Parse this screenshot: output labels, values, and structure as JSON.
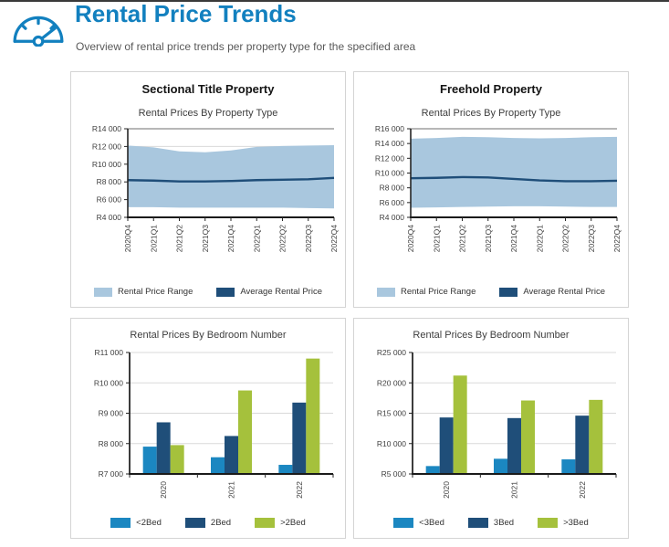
{
  "page": {
    "title": "Rental Price Trends",
    "subtitle": "Overview of rental price trends per property type for the specified area"
  },
  "colors": {
    "accent_blue": "#1280bf",
    "band_light_blue": "#a9c7de",
    "dark_blue": "#1f4e79",
    "cyan": "#1b87c1",
    "green": "#a5c13c",
    "grid": "#d9d9d9",
    "axis": "#262626",
    "tick_text": "#404040"
  },
  "icons": {
    "header_icon": "gauge-icon"
  },
  "chart_data": [
    {
      "panel_heading": "Sectional Title Property",
      "title": "Rental Prices By Property Type",
      "type": "area",
      "x": [
        "2020Q4",
        "2021Q1",
        "2021Q2",
        "2021Q3",
        "2021Q4",
        "2022Q1",
        "2022Q2",
        "2022Q3",
        "2022Q4"
      ],
      "series": [
        {
          "name": "Rental Price Range",
          "role": "band",
          "color": "#a9c7de",
          "upper": [
            12100,
            11900,
            11450,
            11350,
            11550,
            11950,
            12050,
            12100,
            12150
          ],
          "lower": [
            5150,
            5150,
            5100,
            5100,
            5100,
            5100,
            5100,
            5050,
            5000
          ]
        },
        {
          "name": "Average Rental Price",
          "role": "line",
          "color": "#1f4e79",
          "values": [
            8200,
            8150,
            8050,
            8050,
            8100,
            8200,
            8250,
            8300,
            8450
          ]
        }
      ],
      "ylim": [
        4000,
        14000
      ],
      "ytick_step": 2000,
      "ytick_labels": [
        "R4 000",
        "R6 000",
        "R8 000",
        "R10 000",
        "R12 000",
        "R14 000"
      ],
      "grid": true,
      "legend_position": "bottom"
    },
    {
      "panel_heading": "Freehold Property",
      "title": "Rental Prices By Property Type",
      "type": "area",
      "x": [
        "2020Q4",
        "2021Q1",
        "2021Q2",
        "2021Q3",
        "2021Q4",
        "2022Q1",
        "2022Q2",
        "2022Q3",
        "2022Q4"
      ],
      "series": [
        {
          "name": "Rental Price Range",
          "role": "band",
          "color": "#a9c7de",
          "upper": [
            14650,
            14750,
            14900,
            14850,
            14750,
            14700,
            14750,
            14850,
            14900
          ],
          "lower": [
            5300,
            5350,
            5400,
            5450,
            5500,
            5500,
            5450,
            5400,
            5400
          ]
        },
        {
          "name": "Average Rental Price",
          "role": "line",
          "color": "#1f4e79",
          "values": [
            9300,
            9350,
            9450,
            9400,
            9200,
            9000,
            8900,
            8900,
            8950
          ]
        }
      ],
      "ylim": [
        4000,
        16000
      ],
      "ytick_step": 2000,
      "ytick_labels": [
        "R4 000",
        "R6 000",
        "R8 000",
        "R10 000",
        "R12 000",
        "R14 000",
        "R16 000"
      ],
      "grid": true,
      "legend_position": "bottom"
    },
    {
      "title": "Rental Prices By Bedroom Number",
      "type": "bar",
      "categories": [
        "2020",
        "2021",
        "2022"
      ],
      "series": [
        {
          "name": "<2Bed",
          "color": "#1b87c1",
          "values": [
            7900,
            7550,
            7300
          ]
        },
        {
          "name": "2Bed",
          "color": "#1f4e79",
          "values": [
            8700,
            8250,
            9350
          ]
        },
        {
          "name": ">2Bed",
          "color": "#a5c13c",
          "values": [
            7950,
            9750,
            10800
          ]
        }
      ],
      "ylim": [
        7000,
        11000
      ],
      "ytick_step": 1000,
      "ytick_labels": [
        "R7 000",
        "R8 000",
        "R9 000",
        "R10 000",
        "R11 000"
      ],
      "grid": true,
      "legend_position": "bottom"
    },
    {
      "title": "Rental Prices By Bedroom Number",
      "type": "bar",
      "categories": [
        "2020",
        "2021",
        "2022"
      ],
      "series": [
        {
          "name": "<3Bed",
          "color": "#1b87c1",
          "values": [
            6300,
            7500,
            7400
          ]
        },
        {
          "name": "3Bed",
          "color": "#1f4e79",
          "values": [
            14300,
            14200,
            14600
          ]
        },
        {
          "name": ">3Bed",
          "color": "#a5c13c",
          "values": [
            21200,
            17100,
            17200
          ]
        }
      ],
      "ylim": [
        5000,
        25000
      ],
      "ytick_step": 5000,
      "ytick_labels": [
        "R5 000",
        "R10 000",
        "R15 000",
        "R20 000",
        "R25 000"
      ],
      "grid": true,
      "legend_position": "bottom"
    }
  ]
}
